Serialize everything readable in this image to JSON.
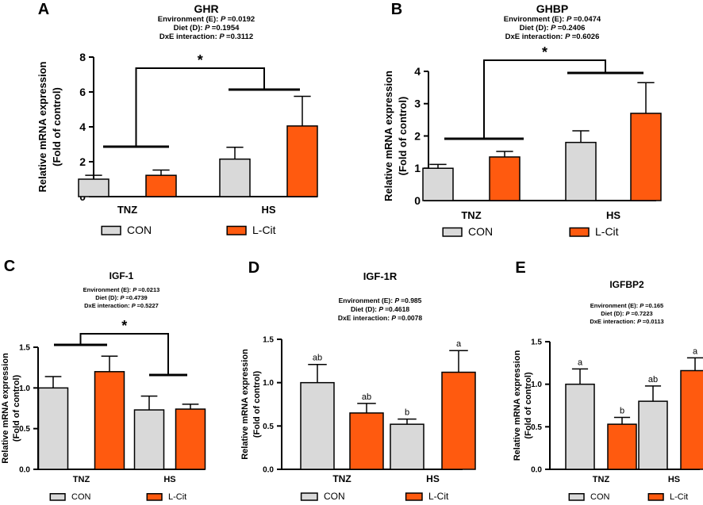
{
  "figure": {
    "legend": {
      "con": "CON",
      "lcit": "L-Cit"
    },
    "colors": {
      "con": "#d9d9d9",
      "lcit": "#ff5a0f",
      "axis": "#000000"
    }
  },
  "chart_data": [
    {
      "panel": "A",
      "type": "bar",
      "title": "GHR",
      "stats": [
        "Environment (E): ",
        "P",
        " =0.0192",
        "Diet (D): ",
        "P",
        " =0.1954",
        "DxE interaction: ",
        "P",
        " =0.3112"
      ],
      "stats_lines": [
        {
          "label": "Environment (E): ",
          "p": "=0.0192"
        },
        {
          "label": "Diet (D): ",
          "p": "=0.1954"
        },
        {
          "label": "DxE interaction: ",
          "p": "=0.3112"
        }
      ],
      "categories": [
        "TNZ",
        "HS"
      ],
      "series": [
        {
          "name": "CON",
          "values": [
            1.0,
            2.15
          ],
          "errors": [
            0.22,
            0.68
          ]
        },
        {
          "name": "L-Cit",
          "values": [
            1.22,
            4.05
          ],
          "errors": [
            0.3,
            1.7
          ]
        }
      ],
      "ylabel": [
        "Relative mRNA expression",
        "(Fold of control)"
      ],
      "ylim": [
        0,
        8
      ],
      "yticks": [
        0,
        2,
        4,
        6,
        8
      ],
      "ytick_labels": [
        "0",
        "2",
        "4",
        "6",
        "8"
      ],
      "bracket_label": "*",
      "letters": null
    },
    {
      "panel": "B",
      "type": "bar",
      "title": "GHBP",
      "stats_lines": [
        {
          "label": "Environment (E): ",
          "p": "=0.0474"
        },
        {
          "label": "Diet (D): ",
          "p": "=0.2406"
        },
        {
          "label": "DxE interaction: ",
          "p": "=0.6026"
        }
      ],
      "categories": [
        "TNZ",
        "HS"
      ],
      "series": [
        {
          "name": "CON",
          "values": [
            1.0,
            1.8
          ],
          "errors": [
            0.12,
            0.36
          ]
        },
        {
          "name": "L-Cit",
          "values": [
            1.35,
            2.7
          ],
          "errors": [
            0.17,
            0.95
          ]
        }
      ],
      "ylabel": [
        "Relative mRNA expression",
        "(Fold of control)"
      ],
      "ylim": [
        0,
        4
      ],
      "yticks": [
        0,
        1,
        2,
        3,
        4
      ],
      "ytick_labels": [
        "0",
        "1",
        "2",
        "3",
        "4"
      ],
      "bracket_label": "*",
      "letters": null
    },
    {
      "panel": "C",
      "type": "bar",
      "title": "IGF-1",
      "stats_lines": [
        {
          "label": "Environment (E): ",
          "p": "=0.0213"
        },
        {
          "label": "Diet (D): ",
          "p": "=0.4739"
        },
        {
          "label": "DxE interaction: ",
          "p": "=0.5227"
        }
      ],
      "categories": [
        "TNZ",
        "HS"
      ],
      "series": [
        {
          "name": "CON",
          "values": [
            1.0,
            0.73
          ],
          "errors": [
            0.14,
            0.17
          ]
        },
        {
          "name": "L-Cit",
          "values": [
            1.2,
            0.74
          ],
          "errors": [
            0.19,
            0.06
          ]
        }
      ],
      "ylabel": [
        "Relative mRNA expression",
        "(Fold of control)"
      ],
      "ylim": [
        0,
        1.5
      ],
      "yticks": [
        0,
        0.5,
        1.0,
        1.5
      ],
      "ytick_labels": [
        "0.0",
        "0.5",
        "1.0",
        "1.5"
      ],
      "bracket_label": "*",
      "letters": null
    },
    {
      "panel": "D",
      "type": "bar",
      "title": "IGF-1R",
      "stats_lines": [
        {
          "label": "Environment (E): ",
          "p": "=0.985"
        },
        {
          "label": "Diet (D): ",
          "p": "=0.4618"
        },
        {
          "label": "DxE interaction: ",
          "p": "=0.0078"
        }
      ],
      "categories": [
        "TNZ",
        "HS"
      ],
      "series": [
        {
          "name": "CON",
          "values": [
            1.0,
            0.52
          ],
          "errors": [
            0.21,
            0.06
          ]
        },
        {
          "name": "L-Cit",
          "values": [
            0.65,
            1.12
          ],
          "errors": [
            0.11,
            0.25
          ]
        }
      ],
      "ylabel": [
        "Relative mRNA expression",
        "(Fold of control)"
      ],
      "ylim": [
        0,
        1.5
      ],
      "yticks": [
        0,
        0.5,
        1.0,
        1.5
      ],
      "ytick_labels": [
        "0.0",
        "0.5",
        "1.0",
        "1.5"
      ],
      "bracket_label": null,
      "letters": [
        [
          "ab",
          "b"
        ],
        [
          "ab",
          "a"
        ]
      ]
    },
    {
      "panel": "E",
      "type": "bar",
      "title": "IGFBP2",
      "stats_lines": [
        {
          "label": "Environment (E): ",
          "p": "=0.165"
        },
        {
          "label": "Diet (D): ",
          "p": "=0.7223"
        },
        {
          "label": "DxE interaction: ",
          "p": "=0.0113"
        }
      ],
      "categories": [
        "TNZ",
        "HS"
      ],
      "series": [
        {
          "name": "CON",
          "values": [
            1.0,
            0.8
          ],
          "errors": [
            0.18,
            0.18
          ]
        },
        {
          "name": "L-Cit",
          "values": [
            0.53,
            1.16
          ],
          "errors": [
            0.08,
            0.15
          ]
        }
      ],
      "ylabel": [
        "Relative mRNA expression",
        "(Fold of control)"
      ],
      "ylim": [
        0,
        1.5
      ],
      "yticks": [
        0,
        0.5,
        1.0,
        1.5
      ],
      "ytick_labels": [
        "0.0",
        "0.5",
        "1.0",
        "1.5"
      ],
      "bracket_label": null,
      "letters": [
        [
          "a",
          "ab"
        ],
        [
          "b",
          "a"
        ]
      ]
    }
  ]
}
